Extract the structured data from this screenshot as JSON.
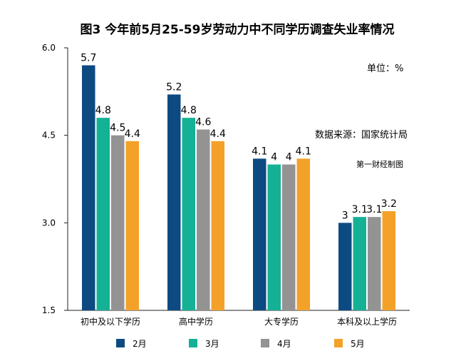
{
  "chart_data": {
    "type": "bar",
    "title": "图3 今年前5月25-59岁劳动力中不同学历调查失业率情况",
    "unit_note": "单位：%",
    "source_note": "数据来源：国家统计局",
    "credit_note": "第一财经制图",
    "categories": [
      "初中及以下学历",
      "高中学历",
      "大专学历",
      "本科及以上学历"
    ],
    "series": [
      {
        "name": "2月",
        "color": "#0e4a82",
        "values": [
          5.7,
          5.2,
          4.1,
          3.0
        ],
        "labels": [
          "5.7",
          "5.2",
          "4.1",
          "3"
        ]
      },
      {
        "name": "3月",
        "color": "#14b195",
        "values": [
          4.8,
          4.8,
          4.0,
          3.1
        ],
        "labels": [
          "4.8",
          "4.8",
          "4",
          "3.1"
        ]
      },
      {
        "name": "4月",
        "color": "#939393",
        "values": [
          4.5,
          4.6,
          4.0,
          3.1
        ],
        "labels": [
          "4.5",
          "4.6",
          "4",
          "3.1"
        ]
      },
      {
        "name": "5月",
        "color": "#f3a129",
        "values": [
          4.4,
          4.4,
          4.1,
          3.2
        ],
        "labels": [
          "4.4",
          "4.4",
          "4.1",
          "3.2"
        ]
      }
    ],
    "y_ticks": [
      "6.0",
      "4.5",
      "3.0",
      "1.5"
    ],
    "ylim": [
      1.5,
      6.0
    ],
    "grid": false,
    "legend_position": "bottom"
  }
}
